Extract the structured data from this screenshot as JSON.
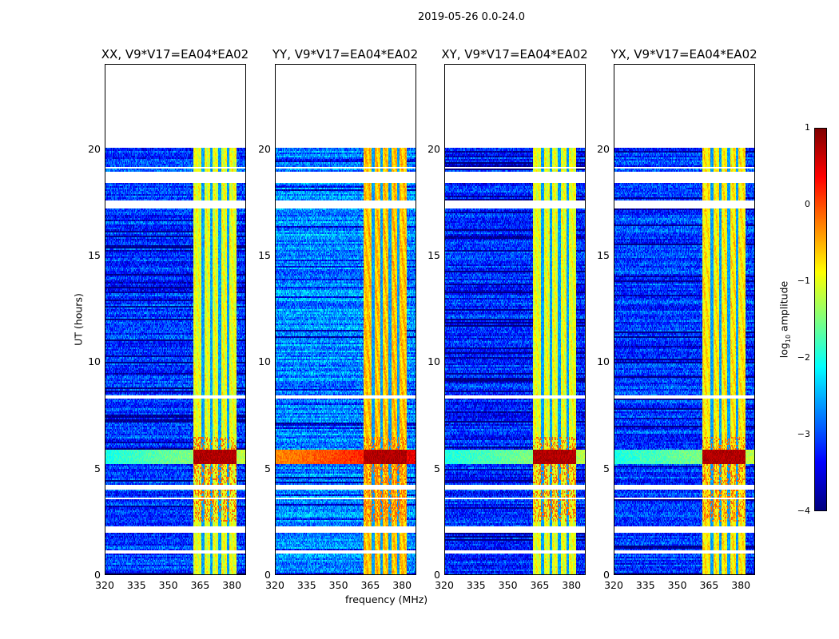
{
  "chart_data": {
    "type": "heatmap",
    "title": "2019-05-26 0.0-24.0",
    "xlabel": "frequency (MHz)",
    "ylabel": "UT (hours)",
    "xlim": [
      320,
      386.7
    ],
    "ylim": [
      0,
      24
    ],
    "xticks": [
      "320",
      "335",
      "350",
      "365",
      "380"
    ],
    "xtick_values": [
      320,
      335,
      350,
      365,
      380
    ],
    "yticks": [
      "0",
      "5",
      "10",
      "15",
      "20"
    ],
    "ytick_values": [
      0,
      5,
      10,
      15,
      20
    ],
    "data_end_hours": 20.1,
    "rfi_band_mhz": [
      362,
      382.5
    ],
    "rfi_gap_mhz": [
      366.5,
      370.5,
      374.5,
      378.5
    ],
    "flare_hours": [
      5.2,
      5.85
    ],
    "flagged_hours": [
      [
        18.45,
        18.95
      ],
      [
        17.25,
        17.6
      ],
      [
        4.0,
        4.2
      ],
      [
        1.95,
        2.25
      ],
      [
        1.0,
        1.15
      ],
      [
        19.1,
        19.2
      ],
      [
        3.5,
        3.6
      ],
      [
        8.3,
        8.4
      ]
    ],
    "panels": [
      {
        "title": "XX, V9*V17=EA04*EA02",
        "level": -3.1,
        "band_level": -1.0,
        "seed": 11
      },
      {
        "title": "YY, V9*V17=EA04*EA02",
        "level": -2.7,
        "band_level": -0.6,
        "seed": 23
      },
      {
        "title": "XY, V9*V17=EA04*EA02",
        "level": -3.2,
        "band_level": -1.0,
        "seed": 37
      },
      {
        "title": "YX, V9*V17=EA04*EA02",
        "level": -3.1,
        "band_level": -0.8,
        "seed": 51
      }
    ],
    "colorbar": {
      "label_main": "log",
      "label_sub": "10",
      "label_rest": " amplitude",
      "range": [
        -4,
        1
      ],
      "ticks": [
        "1",
        "0",
        "−1",
        "−2",
        "−3",
        "−4"
      ],
      "tick_values": [
        1,
        0,
        -1,
        -2,
        -3,
        -4
      ],
      "colormap": "jet"
    }
  }
}
